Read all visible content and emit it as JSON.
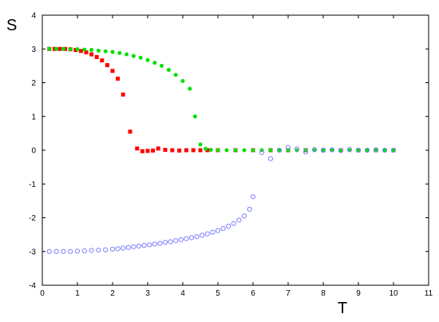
{
  "chart_data": {
    "type": "scatter",
    "xlabel": "T",
    "ylabel": "S",
    "xlim": [
      0,
      11
    ],
    "ylim": [
      -4,
      4
    ],
    "xticks": [
      0,
      1,
      2,
      3,
      4,
      5,
      6,
      7,
      8,
      9,
      10,
      11
    ],
    "yticks": [
      -4,
      -3,
      -2,
      -1,
      0,
      1,
      2,
      3,
      4
    ],
    "grid": false,
    "legend": "none",
    "series": [
      {
        "marker": "square",
        "fill": true,
        "color": "#ff0000",
        "x": [
          0.2,
          0.35,
          0.5,
          0.65,
          0.8,
          0.95,
          1.1,
          1.25,
          1.4,
          1.55,
          1.7,
          1.85,
          2.0,
          2.15,
          2.3,
          2.5,
          2.7,
          2.85,
          3.0,
          3.15,
          3.3,
          3.5,
          3.7,
          3.9,
          4.1,
          4.3,
          4.5,
          4.7,
          5.0,
          5.5,
          6.0,
          6.5,
          7.0,
          7.5,
          8.0,
          8.5,
          9.0,
          9.5,
          10.0
        ],
        "y": [
          3.0,
          3.0,
          3.0,
          3.0,
          2.99,
          2.97,
          2.94,
          2.9,
          2.84,
          2.76,
          2.66,
          2.52,
          2.35,
          2.12,
          1.65,
          0.55,
          0.05,
          -0.03,
          -0.02,
          -0.01,
          0.05,
          0.01,
          0.0,
          -0.01,
          0.0,
          0.0,
          0.0,
          0.0,
          0.0,
          0.0,
          0.0,
          0.0,
          0.0,
          0.0,
          0.0,
          0.0,
          0.0,
          0.0,
          0.0
        ]
      },
      {
        "marker": "circle",
        "fill": true,
        "color": "#00e000",
        "x": [
          0.2,
          0.4,
          0.6,
          0.8,
          1.0,
          1.2,
          1.4,
          1.6,
          1.8,
          2.0,
          2.2,
          2.4,
          2.6,
          2.8,
          3.0,
          3.2,
          3.4,
          3.6,
          3.8,
          4.0,
          4.2,
          4.35,
          4.5,
          4.65,
          4.8,
          5.0,
          5.25,
          5.5,
          5.75,
          6.0,
          6.25,
          6.5,
          6.75,
          7.0,
          7.25,
          7.5,
          7.75,
          8.0,
          8.25,
          8.5,
          8.75,
          9.0,
          9.25,
          9.5,
          9.75,
          10.0
        ],
        "y": [
          3.0,
          3.0,
          3.0,
          2.99,
          2.99,
          2.98,
          2.97,
          2.95,
          2.93,
          2.91,
          2.88,
          2.84,
          2.79,
          2.74,
          2.67,
          2.59,
          2.5,
          2.38,
          2.23,
          2.05,
          1.82,
          1.0,
          0.17,
          0.04,
          0.01,
          0.0,
          0.0,
          0.0,
          0.0,
          0.0,
          0.0,
          0.0,
          0.0,
          0.0,
          0.0,
          0.0,
          0.0,
          0.0,
          0.0,
          0.0,
          0.0,
          0.0,
          0.0,
          0.0,
          0.0,
          0.0
        ]
      },
      {
        "marker": "circle",
        "fill": false,
        "color": "#7f7fff",
        "x": [
          0.2,
          0.4,
          0.6,
          0.8,
          1.0,
          1.2,
          1.4,
          1.6,
          1.8,
          2.0,
          2.15,
          2.3,
          2.45,
          2.6,
          2.75,
          2.9,
          3.05,
          3.2,
          3.35,
          3.5,
          3.65,
          3.8,
          3.95,
          4.1,
          4.25,
          4.4,
          4.55,
          4.7,
          4.85,
          5.0,
          5.15,
          5.3,
          5.45,
          5.6,
          5.75,
          5.9,
          6.0,
          6.25,
          6.5,
          6.75,
          7.0,
          7.25,
          7.5,
          7.75,
          8.0,
          8.25,
          8.5,
          8.75,
          9.0,
          9.25,
          9.5,
          9.75,
          10.0
        ],
        "y": [
          -3.0,
          -3.0,
          -3.0,
          -3.0,
          -2.99,
          -2.98,
          -2.97,
          -2.96,
          -2.95,
          -2.93,
          -2.92,
          -2.9,
          -2.88,
          -2.86,
          -2.84,
          -2.82,
          -2.8,
          -2.78,
          -2.76,
          -2.73,
          -2.71,
          -2.68,
          -2.65,
          -2.62,
          -2.59,
          -2.56,
          -2.52,
          -2.48,
          -2.43,
          -2.38,
          -2.32,
          -2.25,
          -2.17,
          -2.07,
          -1.95,
          -1.75,
          -1.38,
          -0.07,
          -0.25,
          0.0,
          0.08,
          0.04,
          -0.05,
          0.02,
          0.0,
          0.01,
          -0.01,
          0.02,
          0.0,
          0.0,
          0.01,
          0.0,
          0.0
        ]
      }
    ]
  }
}
